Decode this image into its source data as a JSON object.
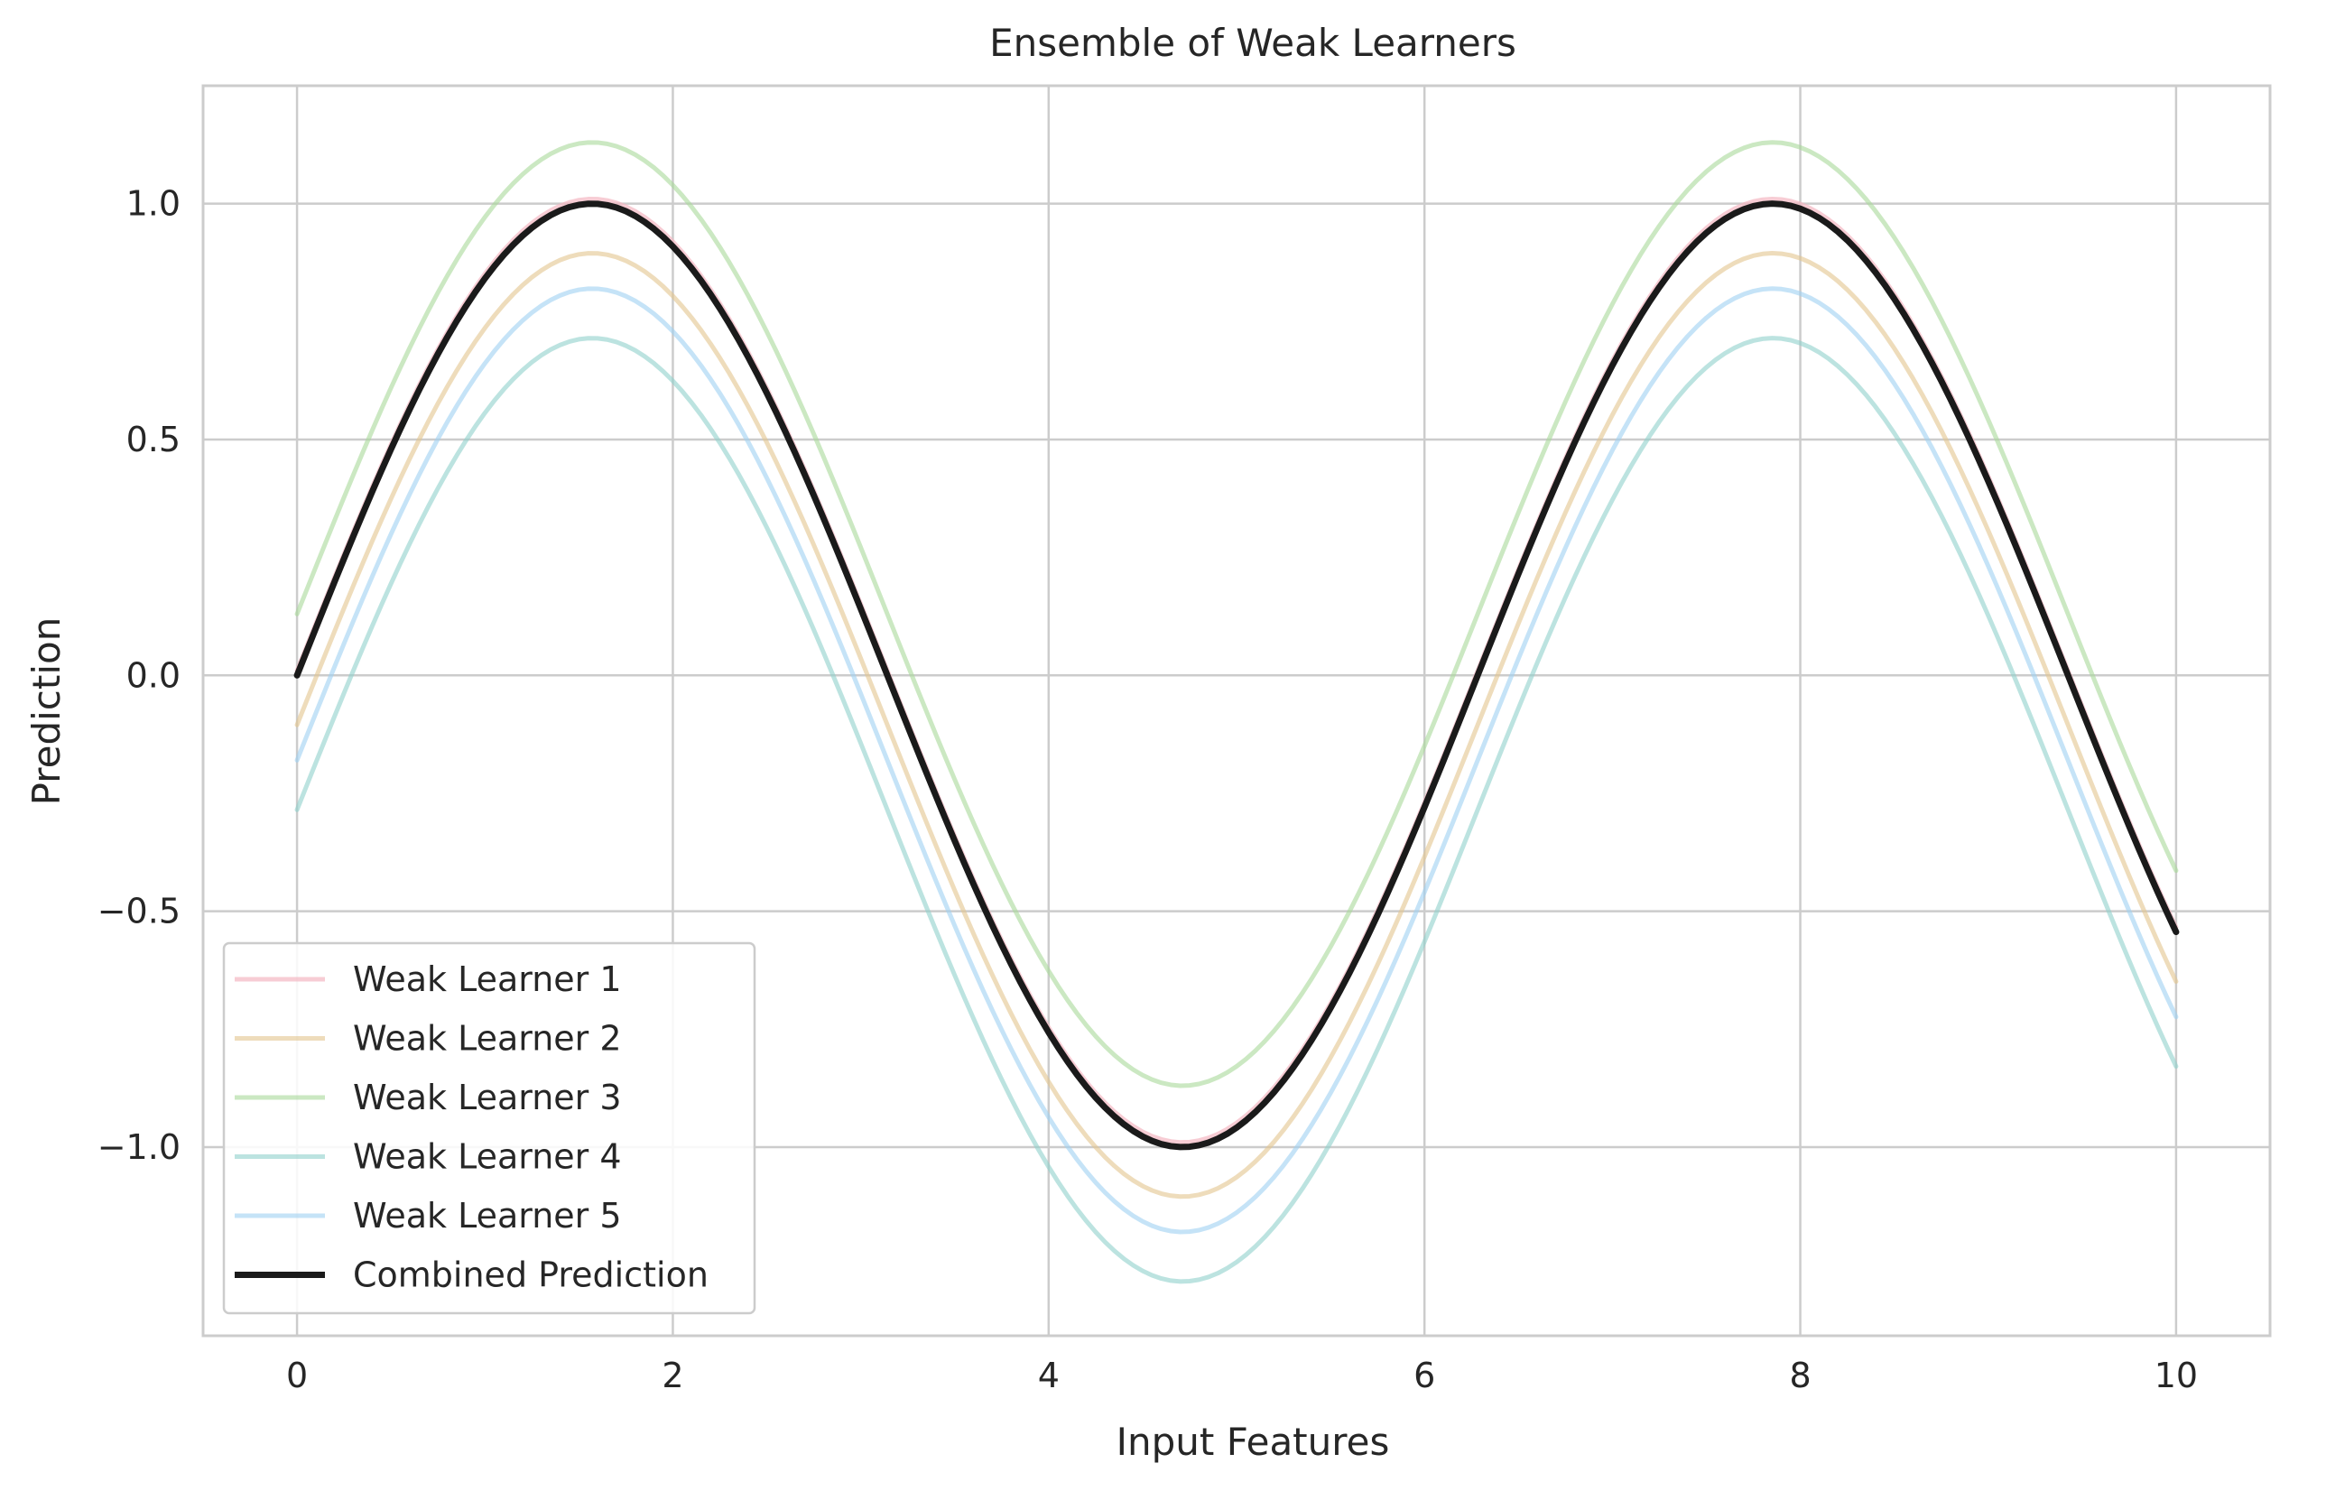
{
  "chart_data": {
    "type": "line",
    "title": "Ensemble of Weak Learners",
    "xlabel": "Input Features",
    "ylabel": "Prediction",
    "xlim": [
      -0.5,
      10.5
    ],
    "ylim": [
      -1.4,
      1.25
    ],
    "x_ticks": [
      0,
      2,
      4,
      6,
      8,
      10
    ],
    "x_tick_labels": [
      "0",
      "2",
      "4",
      "6",
      "8",
      "10"
    ],
    "y_ticks": [
      -1.0,
      -0.5,
      0.0,
      0.5,
      1.0
    ],
    "y_tick_labels": [
      "−1.0",
      "−0.5",
      "0.0",
      "0.5",
      "1.0"
    ],
    "grid": true,
    "legend_position": "lower-left",
    "x_range": [
      0,
      10
    ],
    "function": "sin(x) + offset",
    "series": [
      {
        "name": "Weak Learner 1",
        "offset": 0.01,
        "color": "#f4b6c2",
        "opacity": 0.7
      },
      {
        "name": "Weak Learner 2",
        "offset": -0.105,
        "color": "#e3c48d",
        "opacity": 0.6
      },
      {
        "name": "Weak Learner 3",
        "offset": 0.13,
        "color": "#a9d89a",
        "opacity": 0.6
      },
      {
        "name": "Weak Learner 4",
        "offset": -0.285,
        "color": "#8fd0cc",
        "opacity": 0.6
      },
      {
        "name": "Weak Learner 5",
        "offset": -0.18,
        "color": "#9fd0f2",
        "opacity": 0.6
      },
      {
        "name": "Combined Prediction",
        "offset": 0.0,
        "color": "#1a1a1a",
        "opacity": 1.0
      }
    ]
  }
}
